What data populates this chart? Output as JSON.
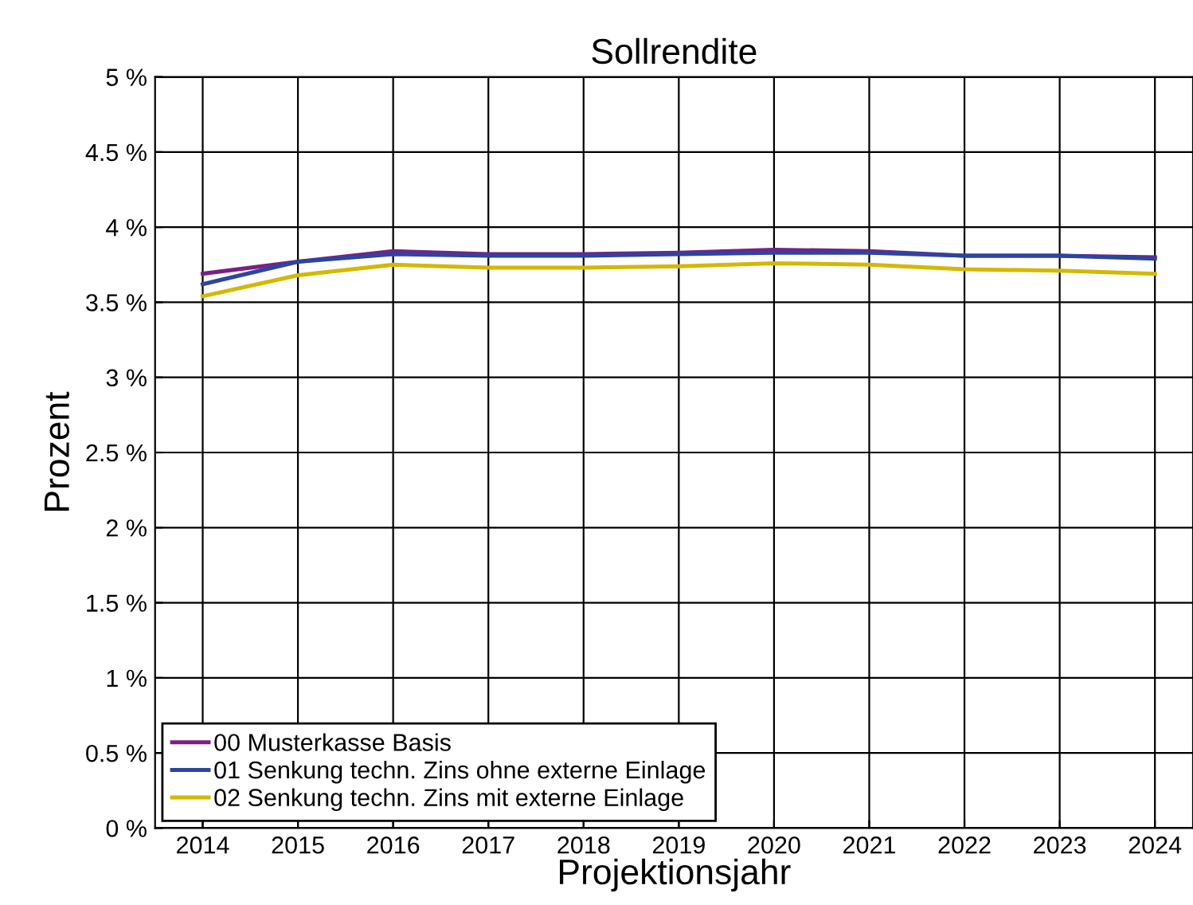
{
  "chart_data": {
    "type": "line",
    "title": "Sollrendite",
    "xlabel": "Projektionsjahr",
    "ylabel": "Prozent",
    "x": [
      2014,
      2015,
      2016,
      2017,
      2018,
      2019,
      2020,
      2021,
      2022,
      2023,
      2024
    ],
    "series": [
      {
        "name": "00 Musterkasse Basis",
        "color": "#7b1f86",
        "values": [
          3.69,
          3.77,
          3.84,
          3.82,
          3.82,
          3.83,
          3.85,
          3.84,
          3.81,
          3.81,
          3.8
        ]
      },
      {
        "name": "01 Senkung techn. Zins ohne externe Einlage",
        "color": "#2b45a0",
        "values": [
          3.62,
          3.77,
          3.82,
          3.81,
          3.81,
          3.82,
          3.83,
          3.83,
          3.81,
          3.81,
          3.79
        ]
      },
      {
        "name": "02 Senkung techn. Zins mit externe Einlage",
        "color": "#d4b800",
        "values": [
          3.54,
          3.68,
          3.75,
          3.73,
          3.73,
          3.74,
          3.76,
          3.75,
          3.72,
          3.71,
          3.69
        ]
      }
    ],
    "xlim": [
      2013.5,
      2024.4
    ],
    "xticks": [
      2014,
      2015,
      2016,
      2017,
      2018,
      2019,
      2020,
      2021,
      2022,
      2023,
      2024
    ],
    "ylim": [
      0,
      5
    ],
    "yticks": [
      {
        "value": 0,
        "label": "0 %"
      },
      {
        "value": 0.5,
        "label": "0.5 %"
      },
      {
        "value": 1,
        "label": "1 %"
      },
      {
        "value": 1.5,
        "label": "1.5 %"
      },
      {
        "value": 2,
        "label": "2 %"
      },
      {
        "value": 2.5,
        "label": "2.5 %"
      },
      {
        "value": 3,
        "label": "3 %"
      },
      {
        "value": 3.5,
        "label": "3.5 %"
      },
      {
        "value": 4,
        "label": "4 %"
      },
      {
        "value": 4.5,
        "label": "4.5 %"
      },
      {
        "value": 5,
        "label": "5 %"
      }
    ],
    "grid": true,
    "legend": "bottom left",
    "marker": "none",
    "line_style": "solid"
  }
}
